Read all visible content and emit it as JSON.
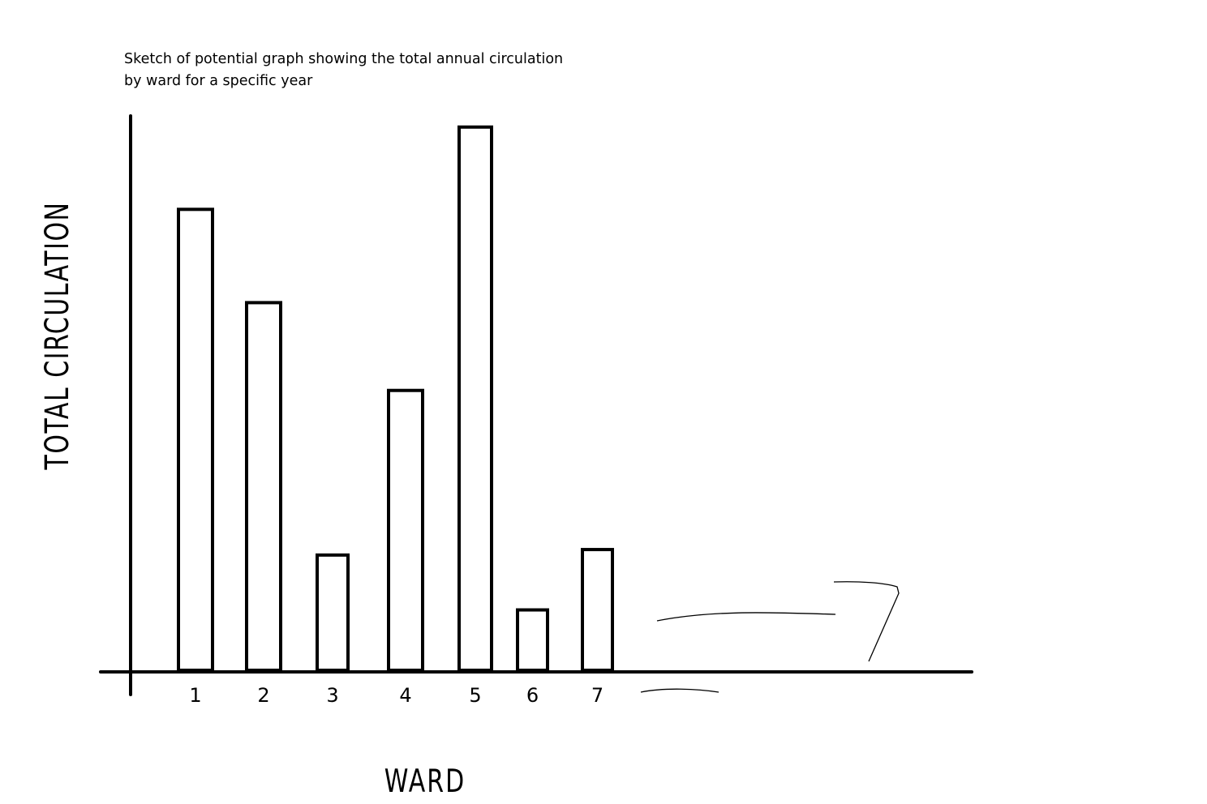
{
  "caption": {
    "line1": "Sketch of potential graph showing the total annual circulation",
    "line2": "by ward for a specific year"
  },
  "chart_data": {
    "type": "bar",
    "title": "Sketch of potential graph showing the total annual circulation by ward for a specific year",
    "xlabel": "WARD",
    "ylabel": "TOTAL CIRCULATION",
    "categories": [
      "1",
      "2",
      "3",
      "4",
      "5",
      "6",
      "7"
    ],
    "values": [
      84,
      67,
      21,
      51,
      99,
      11,
      22
    ],
    "ylim": [
      0,
      100
    ],
    "grid": false,
    "bar_fill": "#ffffff",
    "bar_stroke": "#000000"
  }
}
